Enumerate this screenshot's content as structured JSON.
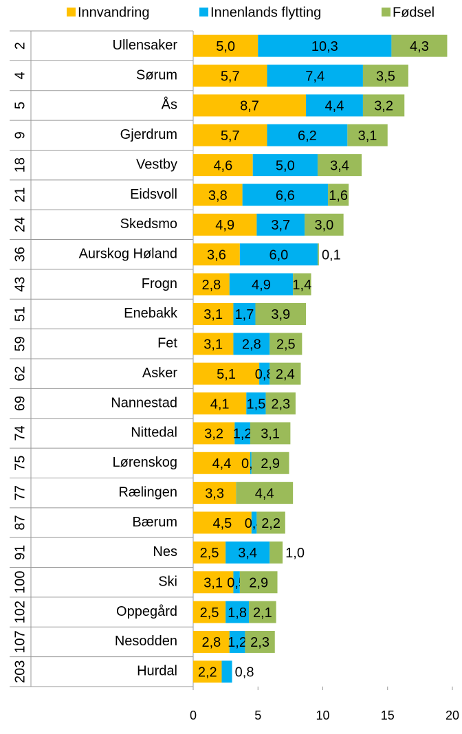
{
  "chart_data": {
    "type": "stacked-barh",
    "ranks": [
      2,
      4,
      5,
      9,
      18,
      21,
      24,
      36,
      43,
      51,
      59,
      62,
      69,
      74,
      75,
      77,
      87,
      91,
      100,
      102,
      107,
      203
    ],
    "categories": [
      "Ullensaker",
      "Sørum",
      "Ås",
      "Gjerdrum",
      "Vestby",
      "Eidsvoll",
      "Skedsmo",
      "Aurskog Høland",
      "Frogn",
      "Enebakk",
      "Fet",
      "Asker",
      "Nannestad",
      "Nittedal",
      "Lørenskog",
      "Rælingen",
      "Bærum",
      "Nes",
      "Ski",
      "Oppegård",
      "Nesodden",
      "Hurdal"
    ],
    "series": [
      {
        "name": "Innvandring",
        "color": "#ffc000",
        "values": [
          5.0,
          5.7,
          8.7,
          5.7,
          4.6,
          3.8,
          4.9,
          3.6,
          2.8,
          3.1,
          3.1,
          5.1,
          4.1,
          3.2,
          4.4,
          3.3,
          4.5,
          2.5,
          3.1,
          2.5,
          2.8,
          2.2
        ],
        "value_labels": [
          "5,0",
          "5,7",
          "8,7",
          "5,7",
          "4,6",
          "3,8",
          "4,9",
          "3,6",
          "2,8",
          "3,1",
          "3,1",
          "5,1",
          "4,1",
          "3,2",
          "4,4",
          "3,3",
          "4,5",
          "2,5",
          "3,1",
          "2,5",
          "2,8",
          "2,2"
        ]
      },
      {
        "name": "Innenlands flytting",
        "color": "#00b0f0",
        "values": [
          10.3,
          7.4,
          4.4,
          6.2,
          5.0,
          6.6,
          3.7,
          6.0,
          4.9,
          1.7,
          2.8,
          0.8,
          1.5,
          1.2,
          0.1,
          null,
          0.4,
          3.4,
          0.5,
          1.8,
          1.2,
          0.8
        ],
        "value_labels": [
          "10,3",
          "7,4",
          "4,4",
          "6,2",
          "5,0",
          "6,6",
          "3,7",
          "6,0",
          "4,9",
          "1,7",
          "2,8",
          "0,8",
          "1,5",
          "1,2",
          "0,1",
          null,
          "0,4",
          "3,4",
          "0,5",
          "1,8",
          "1,2",
          "0,8"
        ]
      },
      {
        "name": "Fødsel",
        "color": "#9bbb59",
        "values": [
          4.3,
          3.5,
          3.2,
          3.1,
          3.4,
          1.6,
          3.0,
          0.1,
          1.4,
          3.9,
          2.5,
          2.4,
          2.3,
          3.1,
          2.9,
          4.4,
          2.2,
          1.0,
          2.9,
          2.1,
          2.3,
          null
        ],
        "value_labels": [
          "4,3",
          "3,5",
          "3,2",
          "3,1",
          "3,4",
          "1,6",
          "3,0",
          "0,1",
          "1,4",
          "3,9",
          "2,5",
          "2,4",
          "2,3",
          "3,1",
          "2,9",
          "4,4",
          "2,2",
          "1,0",
          "2,9",
          "2,1",
          "2,3",
          null
        ]
      }
    ],
    "xlim": [
      0,
      20
    ],
    "xticks": [
      0,
      5,
      10,
      15,
      20
    ]
  }
}
